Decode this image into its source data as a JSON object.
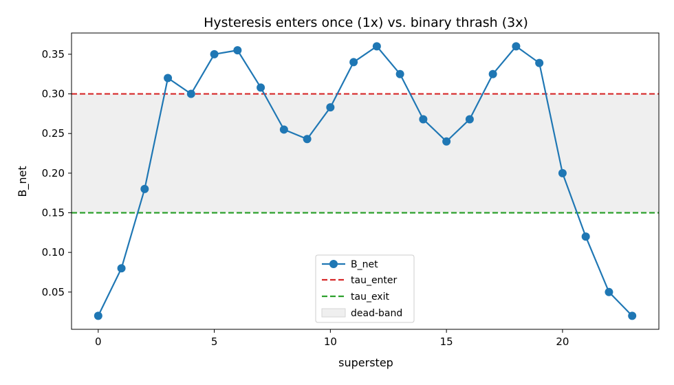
{
  "chart_data": {
    "type": "line",
    "title": "Hysteresis enters once (1x) vs. binary thrash (3x)",
    "xlabel": "superstep",
    "ylabel": "B_net",
    "x": [
      0,
      1,
      2,
      3,
      4,
      5,
      6,
      7,
      8,
      9,
      10,
      11,
      12,
      13,
      14,
      15,
      16,
      17,
      18,
      19,
      20,
      21,
      22,
      23
    ],
    "series": [
      {
        "name": "B_net",
        "color": "#1f77b4",
        "values": [
          0.02,
          0.08,
          0.18,
          0.32,
          0.3,
          0.35,
          0.355,
          0.308,
          0.255,
          0.243,
          0.283,
          0.34,
          0.36,
          0.325,
          0.268,
          0.24,
          0.268,
          0.325,
          0.36,
          0.339,
          0.2,
          0.12,
          0.05,
          0.02
        ]
      }
    ],
    "thresholds": [
      {
        "name": "tau_enter",
        "value": 0.3,
        "color": "#d62728",
        "style": "dashed"
      },
      {
        "name": "tau_exit",
        "value": 0.15,
        "color": "#2ca02c",
        "style": "dashed"
      }
    ],
    "band": {
      "name": "dead-band",
      "from": 0.15,
      "to": 0.3,
      "color": "#efefef"
    },
    "xlim": [
      -1.15,
      24.15
    ],
    "ylim": [
      0.003,
      0.3768
    ],
    "xticks": [
      0,
      5,
      10,
      15,
      20
    ],
    "yticks": [
      0.05,
      0.1,
      0.15,
      0.2,
      0.25,
      0.3,
      0.35
    ],
    "grid": false,
    "legend_position": "lower-center"
  }
}
